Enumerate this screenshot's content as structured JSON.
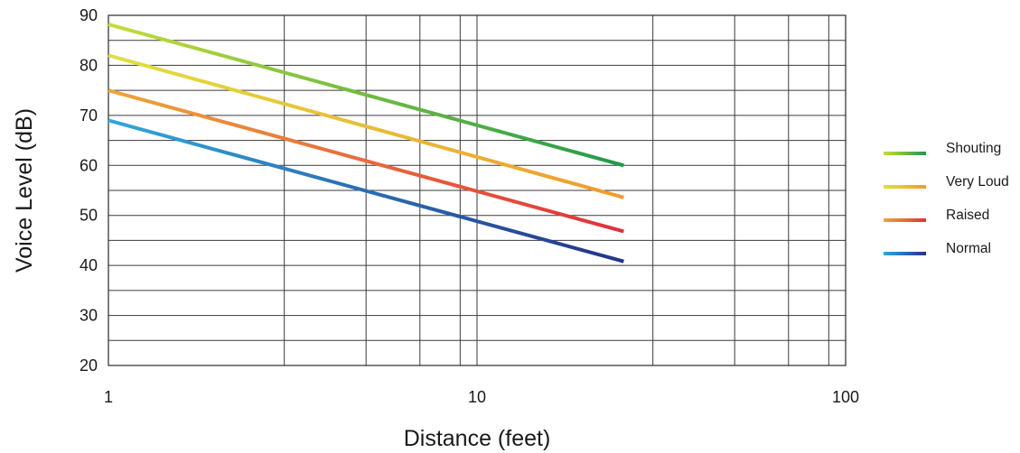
{
  "chart_data": {
    "type": "line",
    "title": "",
    "xlabel": "Distance (feet)",
    "ylabel": "Voice Level (dB)",
    "x_scale": "log",
    "xlim": [
      1,
      100
    ],
    "ylim": [
      20,
      90
    ],
    "x_ticks": [
      1,
      10,
      100
    ],
    "x_tick_labels": [
      "1",
      "10",
      "100"
    ],
    "x_minor_gridlines": [
      3,
      5,
      7,
      9,
      30,
      50,
      70,
      90
    ],
    "y_ticks": [
      20,
      30,
      40,
      50,
      60,
      70,
      80,
      90
    ],
    "y_tick_labels": [
      "20",
      "30",
      "40",
      "50",
      "60",
      "70",
      "80",
      "90"
    ],
    "y_minor_gridlines": [
      25,
      35,
      45,
      55,
      65,
      75,
      85
    ],
    "grid": true,
    "legend_position": "right",
    "series": [
      {
        "name": "Shouting",
        "x": [
          1,
          25
        ],
        "y": [
          88.2,
          60.0
        ],
        "color_start": "#c4dc3a",
        "color_end": "#1f9a4a"
      },
      {
        "name": "Very Loud",
        "x": [
          1,
          25
        ],
        "y": [
          82.0,
          53.6
        ],
        "color_start": "#dfe040",
        "color_end": "#f19a2e"
      },
      {
        "name": "Raised",
        "x": [
          1,
          25
        ],
        "y": [
          75.0,
          46.8
        ],
        "color_start": "#f0a43a",
        "color_end": "#e0303a"
      },
      {
        "name": "Normal",
        "x": [
          1,
          25
        ],
        "y": [
          69.0,
          40.8
        ],
        "color_start": "#30a8dc",
        "color_end": "#24338a"
      }
    ]
  }
}
